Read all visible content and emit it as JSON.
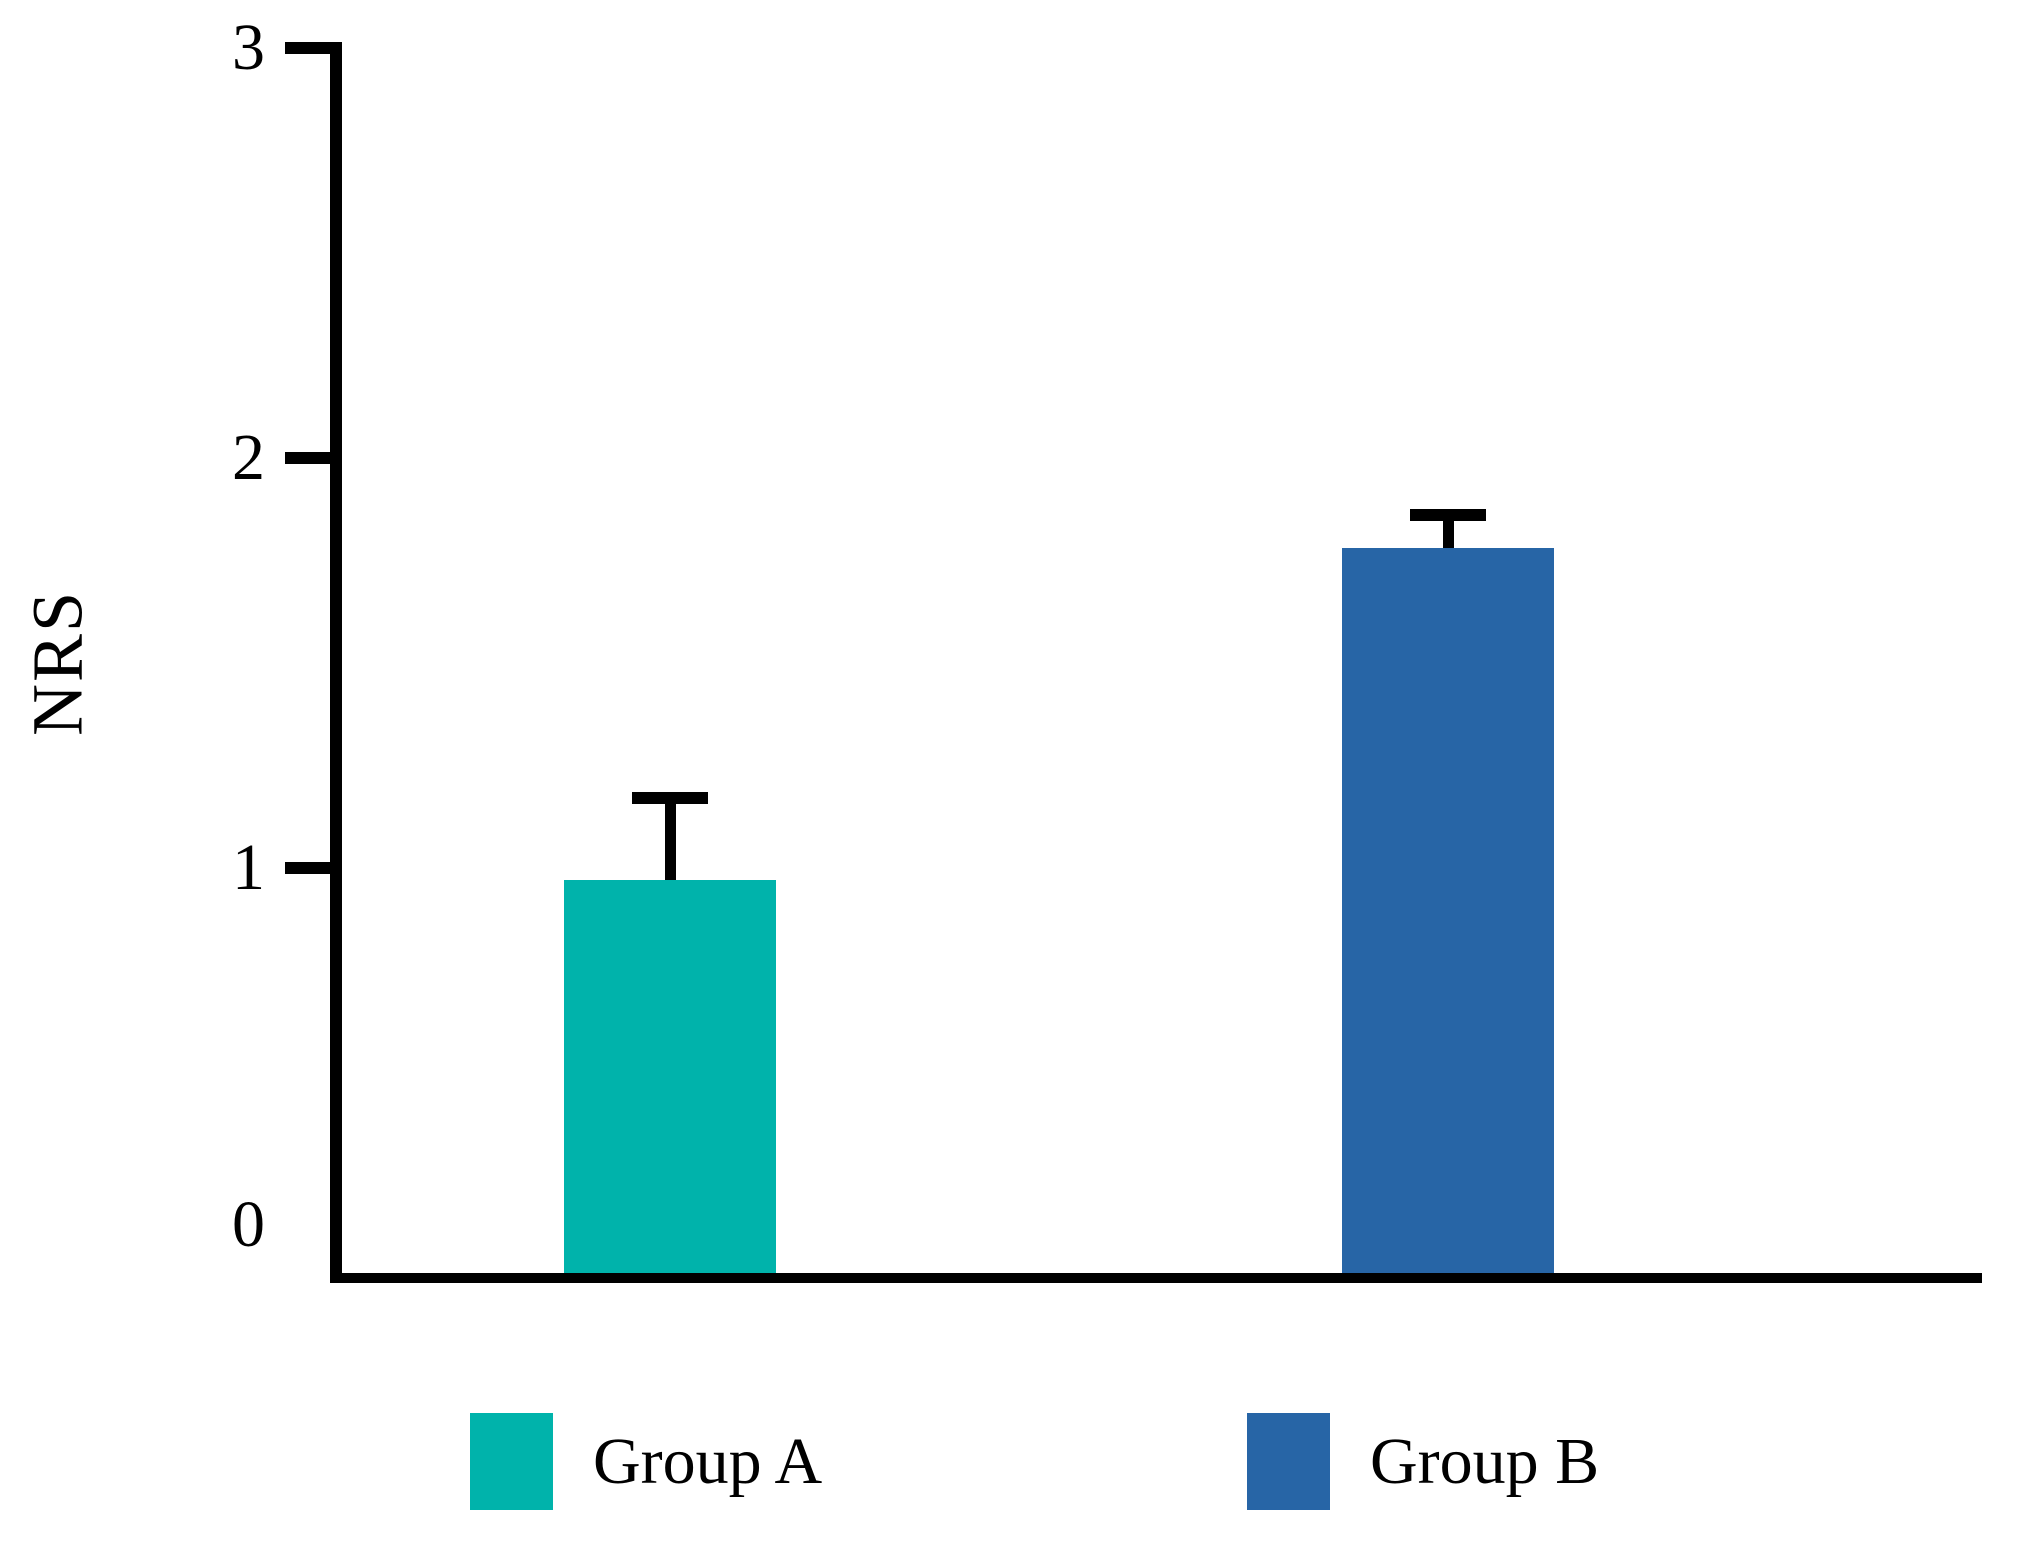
{
  "chart_data": {
    "type": "bar",
    "title": "",
    "ylabel": "NRS",
    "xlabel": "",
    "ylim": [
      0,
      3
    ],
    "yticks": [
      0,
      1,
      2,
      3
    ],
    "categories": [
      "Group A",
      "Group B"
    ],
    "series": [
      {
        "name": "Group A",
        "value": 0.97,
        "error_plus": 0.2,
        "color": "#00B3AB"
      },
      {
        "name": "Group B",
        "value": 1.78,
        "error_plus": 0.08,
        "color": "#2765A6"
      }
    ],
    "error_bar_style": "upper only, black stem and cap",
    "grid": false,
    "axis_color": "#000000",
    "background_color": "#FFFFFF",
    "legend": {
      "position": "bottom",
      "items": [
        {
          "label": "Group A",
          "color": "#00B3AB"
        },
        {
          "label": "Group B",
          "color": "#2765A6"
        }
      ]
    }
  }
}
